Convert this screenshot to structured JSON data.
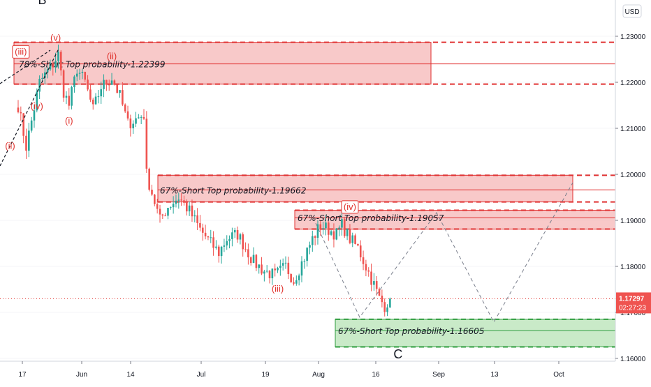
{
  "chart_data": {
    "type": "candlestick",
    "currency": "USD",
    "y_ticks": [
      "1.23000",
      "1.22000",
      "1.21000",
      "1.20000",
      "1.19000",
      "1.18000",
      "1.17000",
      "1.16000"
    ],
    "x_ticks": [
      "17",
      "Jun",
      "14",
      "Jul",
      "19",
      "Aug",
      "16",
      "Sep",
      "13",
      "Oct"
    ],
    "price_label": "1.17297",
    "countdown": "02:27:23",
    "zones": [
      {
        "label": "78%-Short Top probability-1.22399",
        "kind": "resistance",
        "top": 1.2287,
        "bottom": 1.2196,
        "mid": 1.22399
      },
      {
        "label": "67%-Short Top probability-1.19662",
        "kind": "resistance",
        "top": 1.1998,
        "bottom": 1.194,
        "mid": 1.19662
      },
      {
        "label": "67%-Short Top probability-1.19057",
        "kind": "resistance",
        "top": 1.1922,
        "bottom": 1.1881,
        "mid": 1.19057
      },
      {
        "label": "67%-Short Top probability-1.16605",
        "kind": "support",
        "top": 1.1685,
        "bottom": 1.1625,
        "mid": 1.16605
      }
    ],
    "wave_labels": [
      {
        "text": "(iii)",
        "boxed": true,
        "x": 1.0,
        "price": 1.226
      },
      {
        "text": "(v)",
        "boxed": false,
        "x": 14.0,
        "price": 1.229
      },
      {
        "text": "(ii)",
        "boxed": false,
        "x": 35.0,
        "price": 1.225
      },
      {
        "text": "(iv)",
        "boxed": false,
        "x": 7.0,
        "price": 1.2142
      },
      {
        "text": "(i)",
        "boxed": false,
        "x": 19.0,
        "price": 1.211
      },
      {
        "text": "(ii)",
        "boxed": false,
        "x": -3.0,
        "price": 1.2055
      },
      {
        "text": "(iv)",
        "boxed": true,
        "x": 124.0,
        "price": 1.1923
      },
      {
        "text": "(iii)",
        "boxed": false,
        "x": 97.0,
        "price": 1.1745
      }
    ],
    "wave_letters": [
      {
        "text": "B",
        "x": 9.0,
        "price": 1.237
      },
      {
        "text": "C",
        "x": 142.0,
        "price": 1.16
      }
    ]
  }
}
